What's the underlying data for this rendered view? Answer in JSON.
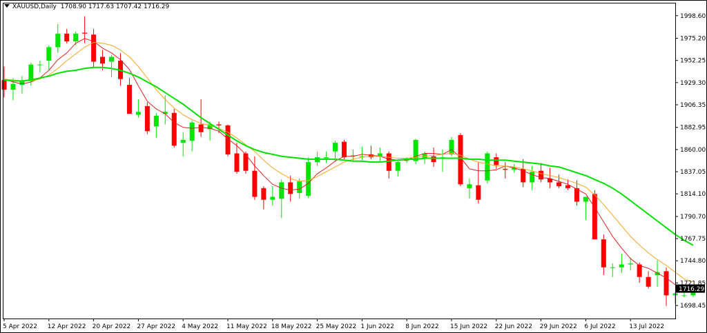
{
  "header": {
    "symbol": "XAUUSD,Daily",
    "ohlc": "1708.90 1717.63 1707.42 1716.29"
  },
  "price_tag": "1716.29",
  "colors": {
    "bull": "#00e600",
    "bear": "#ff0000",
    "ma_fast": "#e02020",
    "ma_mid": "#f5a623",
    "ma_slow": "#00e000"
  },
  "chart_data": {
    "type": "candlestick",
    "symbol": "XAUUSD",
    "timeframe": "Daily",
    "ylim": [
      1685.0,
      2012.0
    ],
    "y_ticks": [
      "1998.60",
      "1975.20",
      "1952.25",
      "1929.30",
      "1906.35",
      "1882.95",
      "1860.00",
      "1837.05",
      "1814.10",
      "1790.70",
      "1767.75",
      "1744.80",
      "1721.85",
      "1698.45"
    ],
    "x_ticks": [
      {
        "index": 0,
        "label": "5 Apr 2022"
      },
      {
        "index": 5,
        "label": "12 Apr 2022"
      },
      {
        "index": 10,
        "label": "20 Apr 2022"
      },
      {
        "index": 15,
        "label": "27 Apr 2022"
      },
      {
        "index": 20,
        "label": "4 May 2022"
      },
      {
        "index": 25,
        "label": "11 May 2022"
      },
      {
        "index": 30,
        "label": "18 May 2022"
      },
      {
        "index": 35,
        "label": "25 May 2022"
      },
      {
        "index": 40,
        "label": "1 Jun 2022"
      },
      {
        "index": 45,
        "label": "8 Jun 2022"
      },
      {
        "index": 50,
        "label": "15 Jun 2022"
      },
      {
        "index": 55,
        "label": "22 Jun 2022"
      },
      {
        "index": 60,
        "label": "29 Jun 2022"
      },
      {
        "index": 65,
        "label": "6 Jul 2022"
      },
      {
        "index": 70,
        "label": "13 Jul 2022"
      }
    ],
    "candles": [
      {
        "o": 1932,
        "h": 1946,
        "l": 1914,
        "c": 1922
      },
      {
        "o": 1922,
        "h": 1934,
        "l": 1911,
        "c": 1928
      },
      {
        "o": 1927,
        "h": 1936,
        "l": 1918,
        "c": 1931
      },
      {
        "o": 1931,
        "h": 1950,
        "l": 1926,
        "c": 1948
      },
      {
        "o": 1948,
        "h": 1952,
        "l": 1940,
        "c": 1948
      },
      {
        "o": 1952,
        "h": 1968,
        "l": 1942,
        "c": 1966
      },
      {
        "o": 1966,
        "h": 1990,
        "l": 1960,
        "c": 1980
      },
      {
        "o": 1980,
        "h": 1985,
        "l": 1970,
        "c": 1972
      },
      {
        "o": 1972,
        "h": 1982,
        "l": 1968,
        "c": 1980
      },
      {
        "o": 1981,
        "h": 1998,
        "l": 1970,
        "c": 1980
      },
      {
        "o": 1979,
        "h": 1985,
        "l": 1945,
        "c": 1951
      },
      {
        "o": 1956,
        "h": 1963,
        "l": 1942,
        "c": 1949
      },
      {
        "o": 1951,
        "h": 1958,
        "l": 1935,
        "c": 1956
      },
      {
        "o": 1952,
        "h": 1960,
        "l": 1926,
        "c": 1933
      },
      {
        "o": 1927,
        "h": 1934,
        "l": 1897,
        "c": 1897
      },
      {
        "o": 1896,
        "h": 1912,
        "l": 1893,
        "c": 1899
      },
      {
        "o": 1905,
        "h": 1909,
        "l": 1876,
        "c": 1879
      },
      {
        "o": 1884,
        "h": 1898,
        "l": 1872,
        "c": 1895
      },
      {
        "o": 1897,
        "h": 1916,
        "l": 1886,
        "c": 1899
      },
      {
        "o": 1898,
        "h": 1902,
        "l": 1862,
        "c": 1864
      },
      {
        "o": 1867,
        "h": 1878,
        "l": 1853,
        "c": 1870
      },
      {
        "o": 1869,
        "h": 1890,
        "l": 1858,
        "c": 1888
      },
      {
        "o": 1886,
        "h": 1912,
        "l": 1873,
        "c": 1878
      },
      {
        "o": 1881,
        "h": 1889,
        "l": 1869,
        "c": 1886
      },
      {
        "o": 1886,
        "h": 1889,
        "l": 1877,
        "c": 1885
      },
      {
        "o": 1885,
        "h": 1886,
        "l": 1853,
        "c": 1855
      },
      {
        "o": 1856,
        "h": 1867,
        "l": 1835,
        "c": 1837
      },
      {
        "o": 1856,
        "h": 1858,
        "l": 1835,
        "c": 1838
      },
      {
        "o": 1838,
        "h": 1853,
        "l": 1808,
        "c": 1811
      },
      {
        "o": 1820,
        "h": 1822,
        "l": 1798,
        "c": 1808
      },
      {
        "o": 1808,
        "h": 1822,
        "l": 1802,
        "c": 1811
      },
      {
        "o": 1809,
        "h": 1829,
        "l": 1789,
        "c": 1826
      },
      {
        "o": 1826,
        "h": 1833,
        "l": 1806,
        "c": 1814
      },
      {
        "o": 1815,
        "h": 1830,
        "l": 1809,
        "c": 1827
      },
      {
        "o": 1812,
        "h": 1852,
        "l": 1810,
        "c": 1847
      },
      {
        "o": 1847,
        "h": 1858,
        "l": 1843,
        "c": 1852
      },
      {
        "o": 1851,
        "h": 1858,
        "l": 1846,
        "c": 1852
      },
      {
        "o": 1858,
        "h": 1869,
        "l": 1848,
        "c": 1867
      },
      {
        "o": 1868,
        "h": 1870,
        "l": 1850,
        "c": 1852
      },
      {
        "o": 1854,
        "h": 1860,
        "l": 1848,
        "c": 1854
      },
      {
        "o": 1853,
        "h": 1863,
        "l": 1849,
        "c": 1853
      },
      {
        "o": 1855,
        "h": 1864,
        "l": 1850,
        "c": 1852
      },
      {
        "o": 1853,
        "h": 1862,
        "l": 1847,
        "c": 1856
      },
      {
        "o": 1856,
        "h": 1858,
        "l": 1830,
        "c": 1838
      },
      {
        "o": 1838,
        "h": 1850,
        "l": 1832,
        "c": 1847
      },
      {
        "o": 1849,
        "h": 1852,
        "l": 1846,
        "c": 1849
      },
      {
        "o": 1848,
        "h": 1871,
        "l": 1845,
        "c": 1870
      },
      {
        "o": 1851,
        "h": 1858,
        "l": 1845,
        "c": 1856
      },
      {
        "o": 1853,
        "h": 1862,
        "l": 1842,
        "c": 1847
      },
      {
        "o": 1851,
        "h": 1860,
        "l": 1837,
        "c": 1852
      },
      {
        "o": 1855,
        "h": 1873,
        "l": 1853,
        "c": 1870
      },
      {
        "o": 1875,
        "h": 1877,
        "l": 1822,
        "c": 1824
      },
      {
        "o": 1820,
        "h": 1830,
        "l": 1809,
        "c": 1824
      },
      {
        "o": 1823,
        "h": 1847,
        "l": 1804,
        "c": 1808
      },
      {
        "o": 1828,
        "h": 1858,
        "l": 1825,
        "c": 1856
      },
      {
        "o": 1852,
        "h": 1856,
        "l": 1840,
        "c": 1844
      },
      {
        "o": 1840,
        "h": 1847,
        "l": 1830,
        "c": 1839
      },
      {
        "o": 1839,
        "h": 1845,
        "l": 1836,
        "c": 1841
      },
      {
        "o": 1840,
        "h": 1850,
        "l": 1821,
        "c": 1826
      },
      {
        "o": 1826,
        "h": 1843,
        "l": 1818,
        "c": 1837
      },
      {
        "o": 1838,
        "h": 1846,
        "l": 1826,
        "c": 1829
      },
      {
        "o": 1830,
        "h": 1841,
        "l": 1820,
        "c": 1826
      },
      {
        "o": 1826,
        "h": 1834,
        "l": 1820,
        "c": 1822
      },
      {
        "o": 1823,
        "h": 1829,
        "l": 1818,
        "c": 1820
      },
      {
        "o": 1820,
        "h": 1828,
        "l": 1802,
        "c": 1806
      },
      {
        "o": 1806,
        "h": 1810,
        "l": 1787,
        "c": 1811
      },
      {
        "o": 1814,
        "h": 1818,
        "l": 1767,
        "c": 1767
      },
      {
        "o": 1767,
        "h": 1772,
        "l": 1730,
        "c": 1738
      },
      {
        "o": 1738,
        "h": 1742,
        "l": 1728,
        "c": 1738
      },
      {
        "o": 1738,
        "h": 1752,
        "l": 1732,
        "c": 1741
      },
      {
        "o": 1741,
        "h": 1748,
        "l": 1735,
        "c": 1742
      },
      {
        "o": 1741,
        "h": 1743,
        "l": 1722,
        "c": 1728
      },
      {
        "o": 1728,
        "h": 1734,
        "l": 1716,
        "c": 1718
      },
      {
        "o": 1730,
        "h": 1745,
        "l": 1718,
        "c": 1733
      },
      {
        "o": 1734,
        "h": 1738,
        "l": 1698,
        "c": 1709
      },
      {
        "o": 1709,
        "h": 1712,
        "l": 1700,
        "c": 1711
      },
      {
        "o": 1709,
        "h": 1712,
        "l": 1707,
        "c": 1709
      },
      {
        "o": 1709,
        "h": 1718,
        "l": 1707,
        "c": 1716
      }
    ],
    "moving_averages": [
      {
        "color": "red",
        "values": [
          1933,
          1930,
          1928,
          1930,
          1934,
          1942,
          1953,
          1960,
          1970,
          1975,
          1972,
          1965,
          1960,
          1953,
          1943,
          1926,
          1910,
          1902,
          1897,
          1888,
          1883,
          1882,
          1883,
          1882,
          1879,
          1871,
          1864,
          1855,
          1843,
          1833,
          1824,
          1820,
          1818,
          1819,
          1825,
          1835,
          1841,
          1848,
          1853,
          1853,
          1855,
          1854,
          1853,
          1850,
          1849,
          1849,
          1853,
          1856,
          1856,
          1855,
          1860,
          1852,
          1840,
          1838,
          1838,
          1839,
          1843,
          1841,
          1838,
          1834,
          1831,
          1830,
          1827,
          1824,
          1819,
          1814,
          1800,
          1785,
          1770,
          1758,
          1747,
          1740,
          1737,
          1732,
          1727,
          1720,
          1715,
          1713
        ]
      },
      {
        "color": "orange",
        "values": [
          1933,
          1932,
          1931,
          1931,
          1933,
          1937,
          1944,
          1952,
          1959,
          1966,
          1971,
          1970,
          1968,
          1963,
          1956,
          1946,
          1934,
          1922,
          1912,
          1903,
          1896,
          1891,
          1887,
          1885,
          1882,
          1878,
          1872,
          1865,
          1858,
          1849,
          1841,
          1835,
          1830,
          1827,
          1828,
          1832,
          1837,
          1842,
          1847,
          1850,
          1852,
          1853,
          1853,
          1852,
          1851,
          1851,
          1852,
          1853,
          1854,
          1855,
          1856,
          1854,
          1850,
          1847,
          1845,
          1843,
          1843,
          1842,
          1840,
          1838,
          1835,
          1833,
          1831,
          1828,
          1825,
          1821,
          1813,
          1803,
          1792,
          1781,
          1770,
          1761,
          1753,
          1746,
          1740,
          1733,
          1726,
          1723
        ]
      },
      {
        "color": "green",
        "values": [
          1932,
          1931,
          1931,
          1932,
          1934,
          1936,
          1939,
          1941,
          1942,
          1944,
          1945,
          1945,
          1944,
          1942,
          1939,
          1935,
          1930,
          1925,
          1919,
          1913,
          1907,
          1900,
          1893,
          1887,
          1881,
          1875,
          1869,
          1864,
          1860,
          1857,
          1855,
          1853,
          1852,
          1851,
          1850,
          1850,
          1850,
          1850,
          1849,
          1848,
          1848,
          1847,
          1847,
          1848,
          1849,
          1850,
          1850,
          1851,
          1851,
          1851,
          1851,
          1851,
          1850,
          1850,
          1849,
          1849,
          1849,
          1848,
          1847,
          1846,
          1845,
          1843,
          1842,
          1839,
          1836,
          1833,
          1829,
          1825,
          1820,
          1814,
          1807,
          1800,
          1793,
          1786,
          1779,
          1772,
          1766,
          1761
        ]
      }
    ]
  }
}
